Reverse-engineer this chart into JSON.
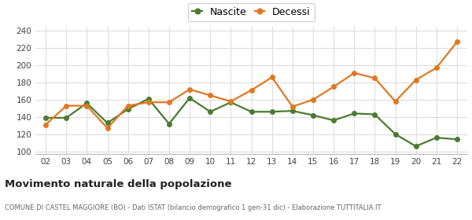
{
  "years": [
    "02",
    "03",
    "04",
    "05",
    "06",
    "07",
    "08",
    "09",
    "10",
    "11",
    "12",
    "13",
    "14",
    "15",
    "16",
    "17",
    "18",
    "19",
    "20",
    "21",
    "22"
  ],
  "nascite": [
    139,
    139,
    156,
    133,
    149,
    161,
    132,
    162,
    146,
    157,
    146,
    146,
    147,
    142,
    136,
    144,
    143,
    120,
    106,
    116,
    114
  ],
  "decessi": [
    131,
    153,
    153,
    127,
    153,
    157,
    157,
    172,
    165,
    158,
    171,
    186,
    152,
    160,
    175,
    191,
    185,
    158,
    183,
    197,
    227
  ],
  "nascite_color": "#4a7c2f",
  "decessi_color": "#e07820",
  "background_color": "#ffffff",
  "grid_color": "#dddddd",
  "title": "Movimento naturale della popolazione",
  "subtitle": "COMUNE DI CASTEL MAGGIORE (BO) - Dati ISTAT (bilancio demografico 1 gen-31 dic) - Elaborazione TUTTITALIA.IT",
  "legend_nascite": "Nascite",
  "legend_decessi": "Decessi",
  "ylim": [
    97,
    245
  ],
  "yticks": [
    100,
    120,
    140,
    160,
    180,
    200,
    220,
    240
  ],
  "marker_size": 4,
  "line_width": 1.6
}
